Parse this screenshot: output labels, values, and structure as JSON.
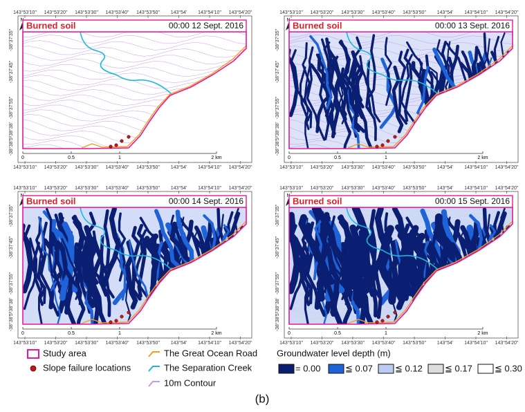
{
  "panels": [
    {
      "label": "Burned soil",
      "time": "00:00 12 Sept. 2016"
    },
    {
      "label": "Burned soil",
      "time": "00:00 13 Sept. 2016"
    },
    {
      "label": "Burned soil",
      "time": "00:00 14 Sept. 2016"
    },
    {
      "label": "Burned soil",
      "time": "00:00 15 Sept. 2016"
    }
  ],
  "lon_ticks": [
    "143°53'10\"",
    "143°53'20\"",
    "143°53'30\"",
    "143°53'40\"",
    "143°53'50\"",
    "143°54'",
    "143°54'10\"",
    "143°54'20\""
  ],
  "lat_ticks": [
    "-38°37'35\"",
    "-38°37'45\"",
    "-38°37'55\"",
    "-38°38'",
    "-38°38'5\""
  ],
  "north": "N",
  "scale_labels": [
    "0",
    "0.5",
    "1",
    "2 km"
  ],
  "legend": {
    "features": [
      {
        "name": "Study area",
        "color": "#e6179a"
      },
      {
        "name": "Slope failure locations",
        "color": "#c0161c"
      },
      {
        "name": "The Great Ocean Road",
        "color": "#f0a020"
      },
      {
        "name": "The Separation Creek",
        "color": "#19b8e0"
      },
      {
        "name": "10m Contour",
        "color": "#c59ae6"
      }
    ],
    "groundwater_title": "Groundwater level depth (m)",
    "groundwater_classes": [
      {
        "label": "= 0.00",
        "color": "#0b1f72"
      },
      {
        "label": "≦ 0.07",
        "color": "#1f63d8"
      },
      {
        "label": "≦ 0.12",
        "color": "#bccbf2"
      },
      {
        "label": "≦ 0.17",
        "color": "#dcdcdc"
      },
      {
        "label": "≦ 0.30",
        "color": "#ffffff"
      }
    ]
  },
  "caption": "(b)"
}
